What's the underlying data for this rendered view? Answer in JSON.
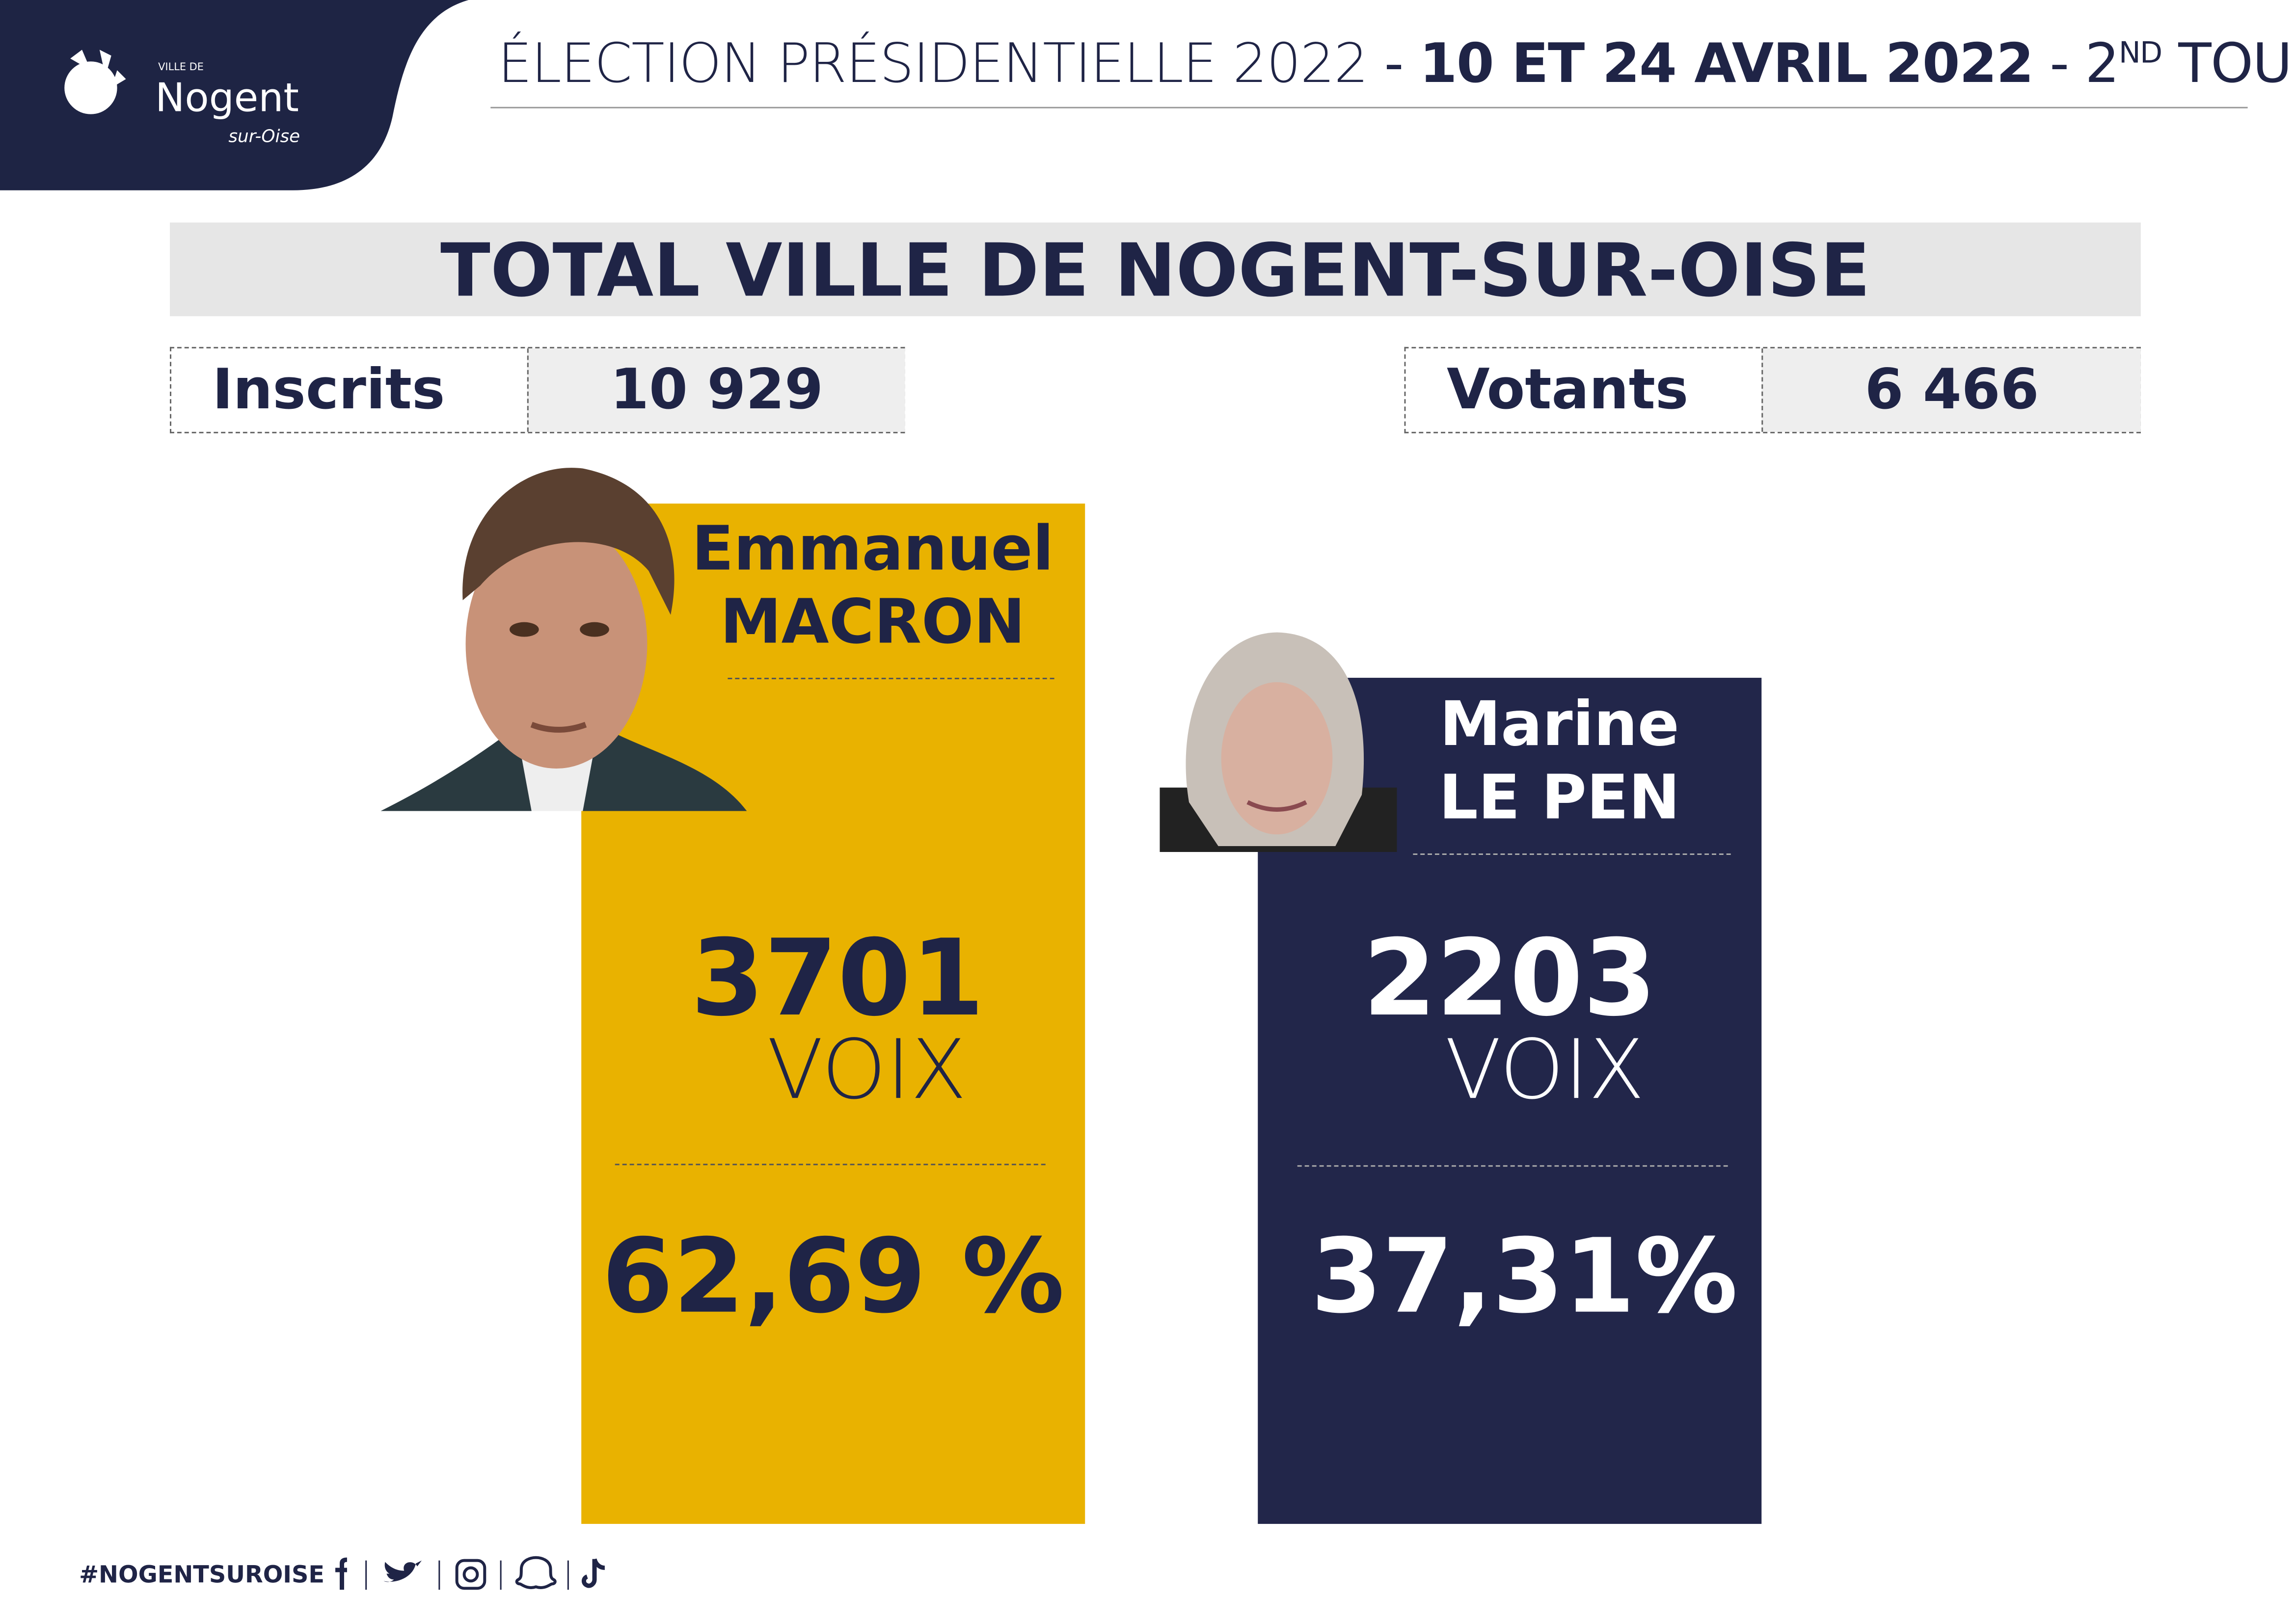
{
  "header": {
    "logo": {
      "small": "VILLE DE",
      "name": "Nogent",
      "sub": "sur-Oise"
    },
    "title": {
      "part1": "ÉLECTION PRÉSIDENTIELLE 2022",
      "sep1": "-",
      "dates": "10 ET 24 AVRIL 2022",
      "sep2": "-",
      "round": "2",
      "round_sup": "ND",
      "round_word": "TOUR"
    }
  },
  "banner": "TOTAL VILLE DE NOGENT-SUR-OISE",
  "stats": [
    {
      "label": "Inscrits",
      "value": "10 929"
    },
    {
      "label": "Votants",
      "value": "6 466"
    }
  ],
  "candidates": [
    {
      "first": "Emmanuel",
      "last": "MACRON",
      "votes": "3701",
      "unit": "VOIX",
      "percent": "62,69 %"
    },
    {
      "first": "Marine",
      "last": "LE PEN",
      "votes": "2203",
      "unit": "VOIX",
      "percent": "37,31%"
    }
  ],
  "footer": {
    "hashtag": "#NOGENTSUROISE"
  }
}
